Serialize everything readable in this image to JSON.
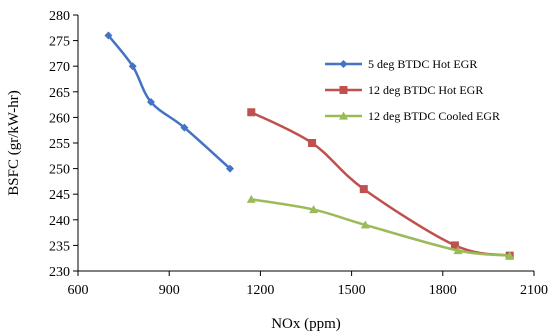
{
  "chart_data": {
    "type": "line",
    "title": "",
    "xlabel": "NOx (ppm)",
    "ylabel": "BSFC (gr/kW-hr)",
    "xlim": [
      600,
      2100
    ],
    "ylim": [
      230,
      280
    ],
    "xticks": [
      600,
      900,
      1200,
      1500,
      1800,
      2100
    ],
    "yticks": [
      230,
      235,
      240,
      245,
      250,
      255,
      260,
      265,
      270,
      275,
      280
    ],
    "grid": false,
    "legend_position": "top-right",
    "series": [
      {
        "name": "5 deg BTDC Hot EGR",
        "color": "#4472C4",
        "marker": "diamond",
        "x": [
          700,
          780,
          840,
          950,
          1100
        ],
        "y": [
          276,
          270,
          263,
          258,
          250
        ]
      },
      {
        "name": "12 deg BTDC Hot EGR",
        "color": "#C0504D",
        "marker": "square",
        "x": [
          1170,
          1370,
          1540,
          1840,
          2020
        ],
        "y": [
          261,
          255,
          246,
          235,
          233
        ]
      },
      {
        "name": "12 deg BTDC Cooled EGR",
        "color": "#9BBB59",
        "marker": "triangle",
        "x": [
          1170,
          1375,
          1545,
          1850,
          2020
        ],
        "y": [
          244,
          242,
          239,
          234,
          233
        ]
      }
    ]
  }
}
